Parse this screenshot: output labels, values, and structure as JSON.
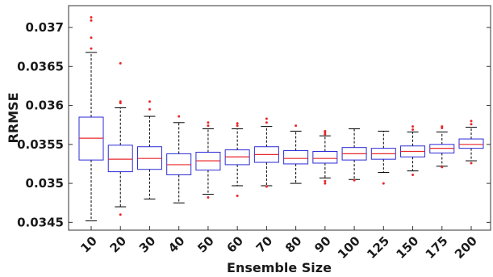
{
  "chart_data": {
    "type": "box",
    "xlabel": "Ensemble Size",
    "ylabel": "RRMSE",
    "ylim": [
      0.0344,
      0.03728
    ],
    "yticks": [
      0.0345,
      0.035,
      0.0355,
      0.036,
      0.0365,
      0.037
    ],
    "ytick_labels": [
      "0.0345",
      "0.035",
      "0.0355",
      "0.036",
      "0.0365",
      "0.037"
    ],
    "grid": false,
    "colors": {
      "box": "#2b2bd6",
      "median": "#e8282b",
      "whisker": "#000000",
      "outlier": "#e8282b"
    },
    "categories": [
      "10",
      "20",
      "30",
      "40",
      "50",
      "60",
      "70",
      "80",
      "90",
      "100",
      "125",
      "150",
      "175",
      "200"
    ],
    "boxes": [
      {
        "q1": 0.0353,
        "median": 0.03558,
        "q3": 0.03585,
        "whislo": 0.03452,
        "whishi": 0.03668,
        "outliers": [
          0.03713,
          0.03709,
          0.03687,
          0.03673
        ]
      },
      {
        "q1": 0.03515,
        "median": 0.03531,
        "q3": 0.03549,
        "whislo": 0.0347,
        "whishi": 0.03597,
        "outliers": [
          0.03654,
          0.03605,
          0.03603,
          0.0346
        ]
      },
      {
        "q1": 0.03518,
        "median": 0.03532,
        "q3": 0.03547,
        "whislo": 0.0348,
        "whishi": 0.03586,
        "outliers": [
          0.03605,
          0.03595
        ]
      },
      {
        "q1": 0.03511,
        "median": 0.03524,
        "q3": 0.03538,
        "whislo": 0.03475,
        "whishi": 0.03578,
        "outliers": [
          0.03586
        ]
      },
      {
        "q1": 0.03517,
        "median": 0.03529,
        "q3": 0.0354,
        "whislo": 0.03486,
        "whishi": 0.0357,
        "outliers": [
          0.03578,
          0.03574,
          0.03482
        ]
      },
      {
        "q1": 0.03524,
        "median": 0.03534,
        "q3": 0.03543,
        "whislo": 0.03497,
        "whishi": 0.0357,
        "outliers": [
          0.03577,
          0.03574,
          0.03484
        ]
      },
      {
        "q1": 0.03527,
        "median": 0.03537,
        "q3": 0.03547,
        "whislo": 0.03497,
        "whishi": 0.03573,
        "outliers": [
          0.03583,
          0.03578,
          0.03496
        ]
      },
      {
        "q1": 0.03525,
        "median": 0.03532,
        "q3": 0.03542,
        "whislo": 0.035,
        "whishi": 0.03567,
        "outliers": [
          0.03574
        ]
      },
      {
        "q1": 0.03526,
        "median": 0.03532,
        "q3": 0.03541,
        "whislo": 0.03507,
        "whishi": 0.03561,
        "outliers": [
          0.03567,
          0.03565,
          0.03563,
          0.03503,
          0.035
        ]
      },
      {
        "q1": 0.0353,
        "median": 0.03538,
        "q3": 0.03546,
        "whislo": 0.03505,
        "whishi": 0.0357,
        "outliers": [
          0.03504
        ]
      },
      {
        "q1": 0.03531,
        "median": 0.03538,
        "q3": 0.03545,
        "whislo": 0.03514,
        "whishi": 0.03567,
        "outliers": [
          0.035
        ]
      },
      {
        "q1": 0.03534,
        "median": 0.03541,
        "q3": 0.03548,
        "whislo": 0.03516,
        "whishi": 0.03566,
        "outliers": [
          0.03573,
          0.03569,
          0.03511
        ]
      },
      {
        "q1": 0.03539,
        "median": 0.03545,
        "q3": 0.0355,
        "whislo": 0.03522,
        "whishi": 0.03566,
        "outliers": [
          0.03573,
          0.03571,
          0.03521
        ]
      },
      {
        "q1": 0.03545,
        "median": 0.0355,
        "q3": 0.03557,
        "whislo": 0.03529,
        "whishi": 0.03572,
        "outliers": [
          0.0358,
          0.03576,
          0.03526
        ]
      }
    ]
  }
}
